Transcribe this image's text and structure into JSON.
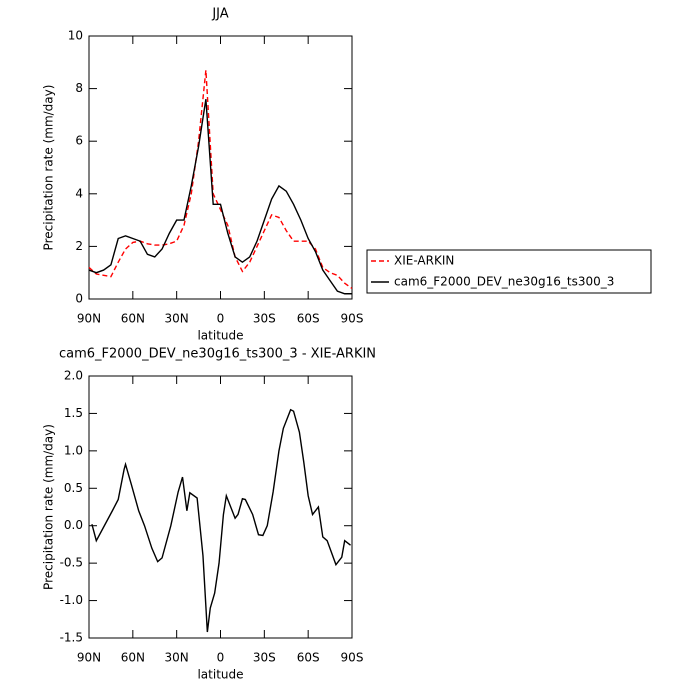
{
  "chart_data": [
    {
      "type": "line",
      "title": "JJA",
      "xlabel": "latitude",
      "ylabel": "Precipitation rate (mm/day)",
      "xlim": [
        90,
        -90
      ],
      "xticks": [
        {
          "value": 90,
          "label": "90N"
        },
        {
          "value": 60,
          "label": "60N"
        },
        {
          "value": 30,
          "label": "30N"
        },
        0,
        {
          "value": -30,
          "label": "30S"
        },
        {
          "value": -60,
          "label": "60S"
        },
        {
          "value": -90,
          "label": "90S"
        }
      ],
      "ylim": [
        0,
        10
      ],
      "yticks": [
        0,
        2,
        4,
        6,
        8,
        10
      ],
      "legend": "right",
      "x": [
        90,
        85,
        80,
        75,
        70,
        65,
        60,
        55,
        50,
        45,
        40,
        35,
        30,
        25,
        20,
        15,
        10,
        5,
        0,
        -5,
        -10,
        -15,
        -20,
        -25,
        -30,
        -35,
        -40,
        -45,
        -50,
        -55,
        -60,
        -65,
        -70,
        -75,
        -80,
        -85,
        -90
      ],
      "series": [
        {
          "name": "XIE-ARKIN",
          "color": "#ff0000",
          "line_style": "dashed",
          "values": [
            1.2,
            0.95,
            0.9,
            0.85,
            1.4,
            1.9,
            2.15,
            2.2,
            2.1,
            2.05,
            2.05,
            2.1,
            2.2,
            2.8,
            4.0,
            6.0,
            8.7,
            4.0,
            3.4,
            2.8,
            1.6,
            1.05,
            1.4,
            2.0,
            2.6,
            3.2,
            3.1,
            2.6,
            2.2,
            2.2,
            2.2,
            1.9,
            1.2,
            1.0,
            0.9,
            0.6,
            0.4
          ]
        },
        {
          "name": "cam6_F2000_DEV_ne30g16_ts300_3",
          "color": "#000000",
          "line_style": "solid",
          "values": [
            1.1,
            1.0,
            1.1,
            1.3,
            2.3,
            2.4,
            2.3,
            2.2,
            1.7,
            1.6,
            1.9,
            2.5,
            3.0,
            3.0,
            4.3,
            5.8,
            7.6,
            3.6,
            3.6,
            2.5,
            1.6,
            1.4,
            1.6,
            2.2,
            3.0,
            3.8,
            4.3,
            4.1,
            3.6,
            3.0,
            2.3,
            1.8,
            1.1,
            0.7,
            0.3,
            0.2,
            0.2
          ]
        }
      ]
    },
    {
      "type": "line",
      "title": "cam6_F2000_DEV_ne30g16_ts300_3 - XIE-ARKIN",
      "xlabel": "latitude",
      "ylabel": "Precipitation rate (mm/day)",
      "xlim": [
        90,
        -90
      ],
      "xticks": [
        {
          "value": 90,
          "label": "90N"
        },
        {
          "value": 60,
          "label": "60N"
        },
        {
          "value": 30,
          "label": "30N"
        },
        0,
        {
          "value": -30,
          "label": "30S"
        },
        {
          "value": -60,
          "label": "60S"
        },
        {
          "value": -90,
          "label": "90S"
        }
      ],
      "ylim": [
        -1.5,
        2
      ],
      "yticks": [
        {
          "value": -1.5,
          "label": "-1.5"
        },
        {
          "value": -1,
          "label": "-1.0"
        },
        {
          "value": -0.5,
          "label": "-0.5"
        },
        {
          "value": 0,
          "label": "0.0"
        },
        {
          "value": 0.5,
          "label": "0.5"
        },
        {
          "value": 1,
          "label": "1.0"
        },
        {
          "value": 1.5,
          "label": "1.5"
        },
        {
          "value": 2,
          "label": "2.0"
        }
      ],
      "x": [
        88,
        85,
        74,
        70,
        66,
        65,
        61,
        56,
        52,
        47,
        43,
        40,
        34,
        29,
        26,
        23,
        21,
        16,
        12,
        9,
        7,
        4,
        1,
        -2,
        -4,
        -10,
        -12,
        -15,
        -17,
        -22,
        -26,
        -29,
        -32,
        -36,
        -40,
        -43,
        -48,
        -50,
        -54,
        -57,
        -60,
        -63,
        -67,
        -70,
        -73,
        -79,
        -83,
        -85,
        -89
      ],
      "series": [
        {
          "color": "#000000",
          "line_style": "solid",
          "values": [
            0.02,
            -0.2,
            0.2,
            0.35,
            0.75,
            0.82,
            0.55,
            0.2,
            0.0,
            -0.3,
            -0.48,
            -0.43,
            0,
            0.45,
            0.65,
            0.2,
            0.44,
            0.37,
            -0.4,
            -1.42,
            -1.1,
            -0.9,
            -0.5,
            0.15,
            0.4,
            0.1,
            0.15,
            0.36,
            0.35,
            0.15,
            -0.12,
            -0.13,
            0,
            0.45,
            1.0,
            1.3,
            1.55,
            1.53,
            1.25,
            0.85,
            0.4,
            0.15,
            0.25,
            -0.15,
            -0.2,
            -0.52,
            -0.42,
            -0.2,
            -0.26
          ]
        }
      ]
    }
  ]
}
